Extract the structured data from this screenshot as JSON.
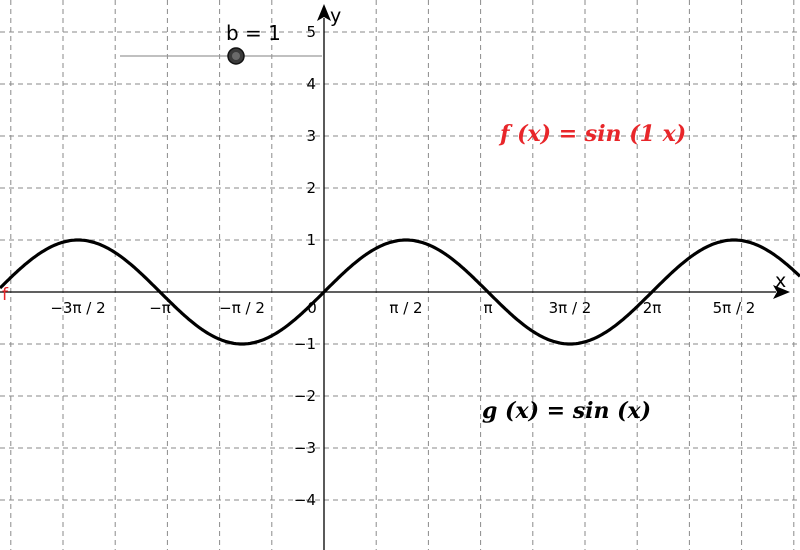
{
  "slider": {
    "label": "b = 1",
    "value": 1
  },
  "axes": {
    "x_name": "x",
    "y_name": "y",
    "x_tick_labels": [
      {
        "text": "−3π / 2",
        "value": -4.71238898
      },
      {
        "text": "−π",
        "value": -3.14159265
      },
      {
        "text": "−π / 2",
        "value": -1.57079633
      },
      {
        "text": "0",
        "value": 0
      },
      {
        "text": "π / 2",
        "value": 1.57079633
      },
      {
        "text": "π",
        "value": 3.14159265
      },
      {
        "text": "3π / 2",
        "value": 4.71238898
      },
      {
        "text": "2π",
        "value": 6.28318531
      },
      {
        "text": "5π / 2",
        "value": 7.85398163
      }
    ],
    "y_tick_labels": [
      {
        "text": "5",
        "value": 5
      },
      {
        "text": "4",
        "value": 4
      },
      {
        "text": "3",
        "value": 3
      },
      {
        "text": "2",
        "value": 2
      },
      {
        "text": "1",
        "value": 1
      },
      {
        "text": "−1",
        "value": -1
      },
      {
        "text": "−2",
        "value": -2
      },
      {
        "text": "−3",
        "value": -3
      },
      {
        "text": "−4",
        "value": -4
      }
    ]
  },
  "functions": {
    "f_label": "f (x) = sin (1 x)",
    "g_label": "g (x) = sin (x)",
    "f_curve_label": "f"
  },
  "colors": {
    "f": "#e8262a",
    "g": "#000000",
    "grid": "#8a8a8a",
    "axis": "#000000"
  }
}
